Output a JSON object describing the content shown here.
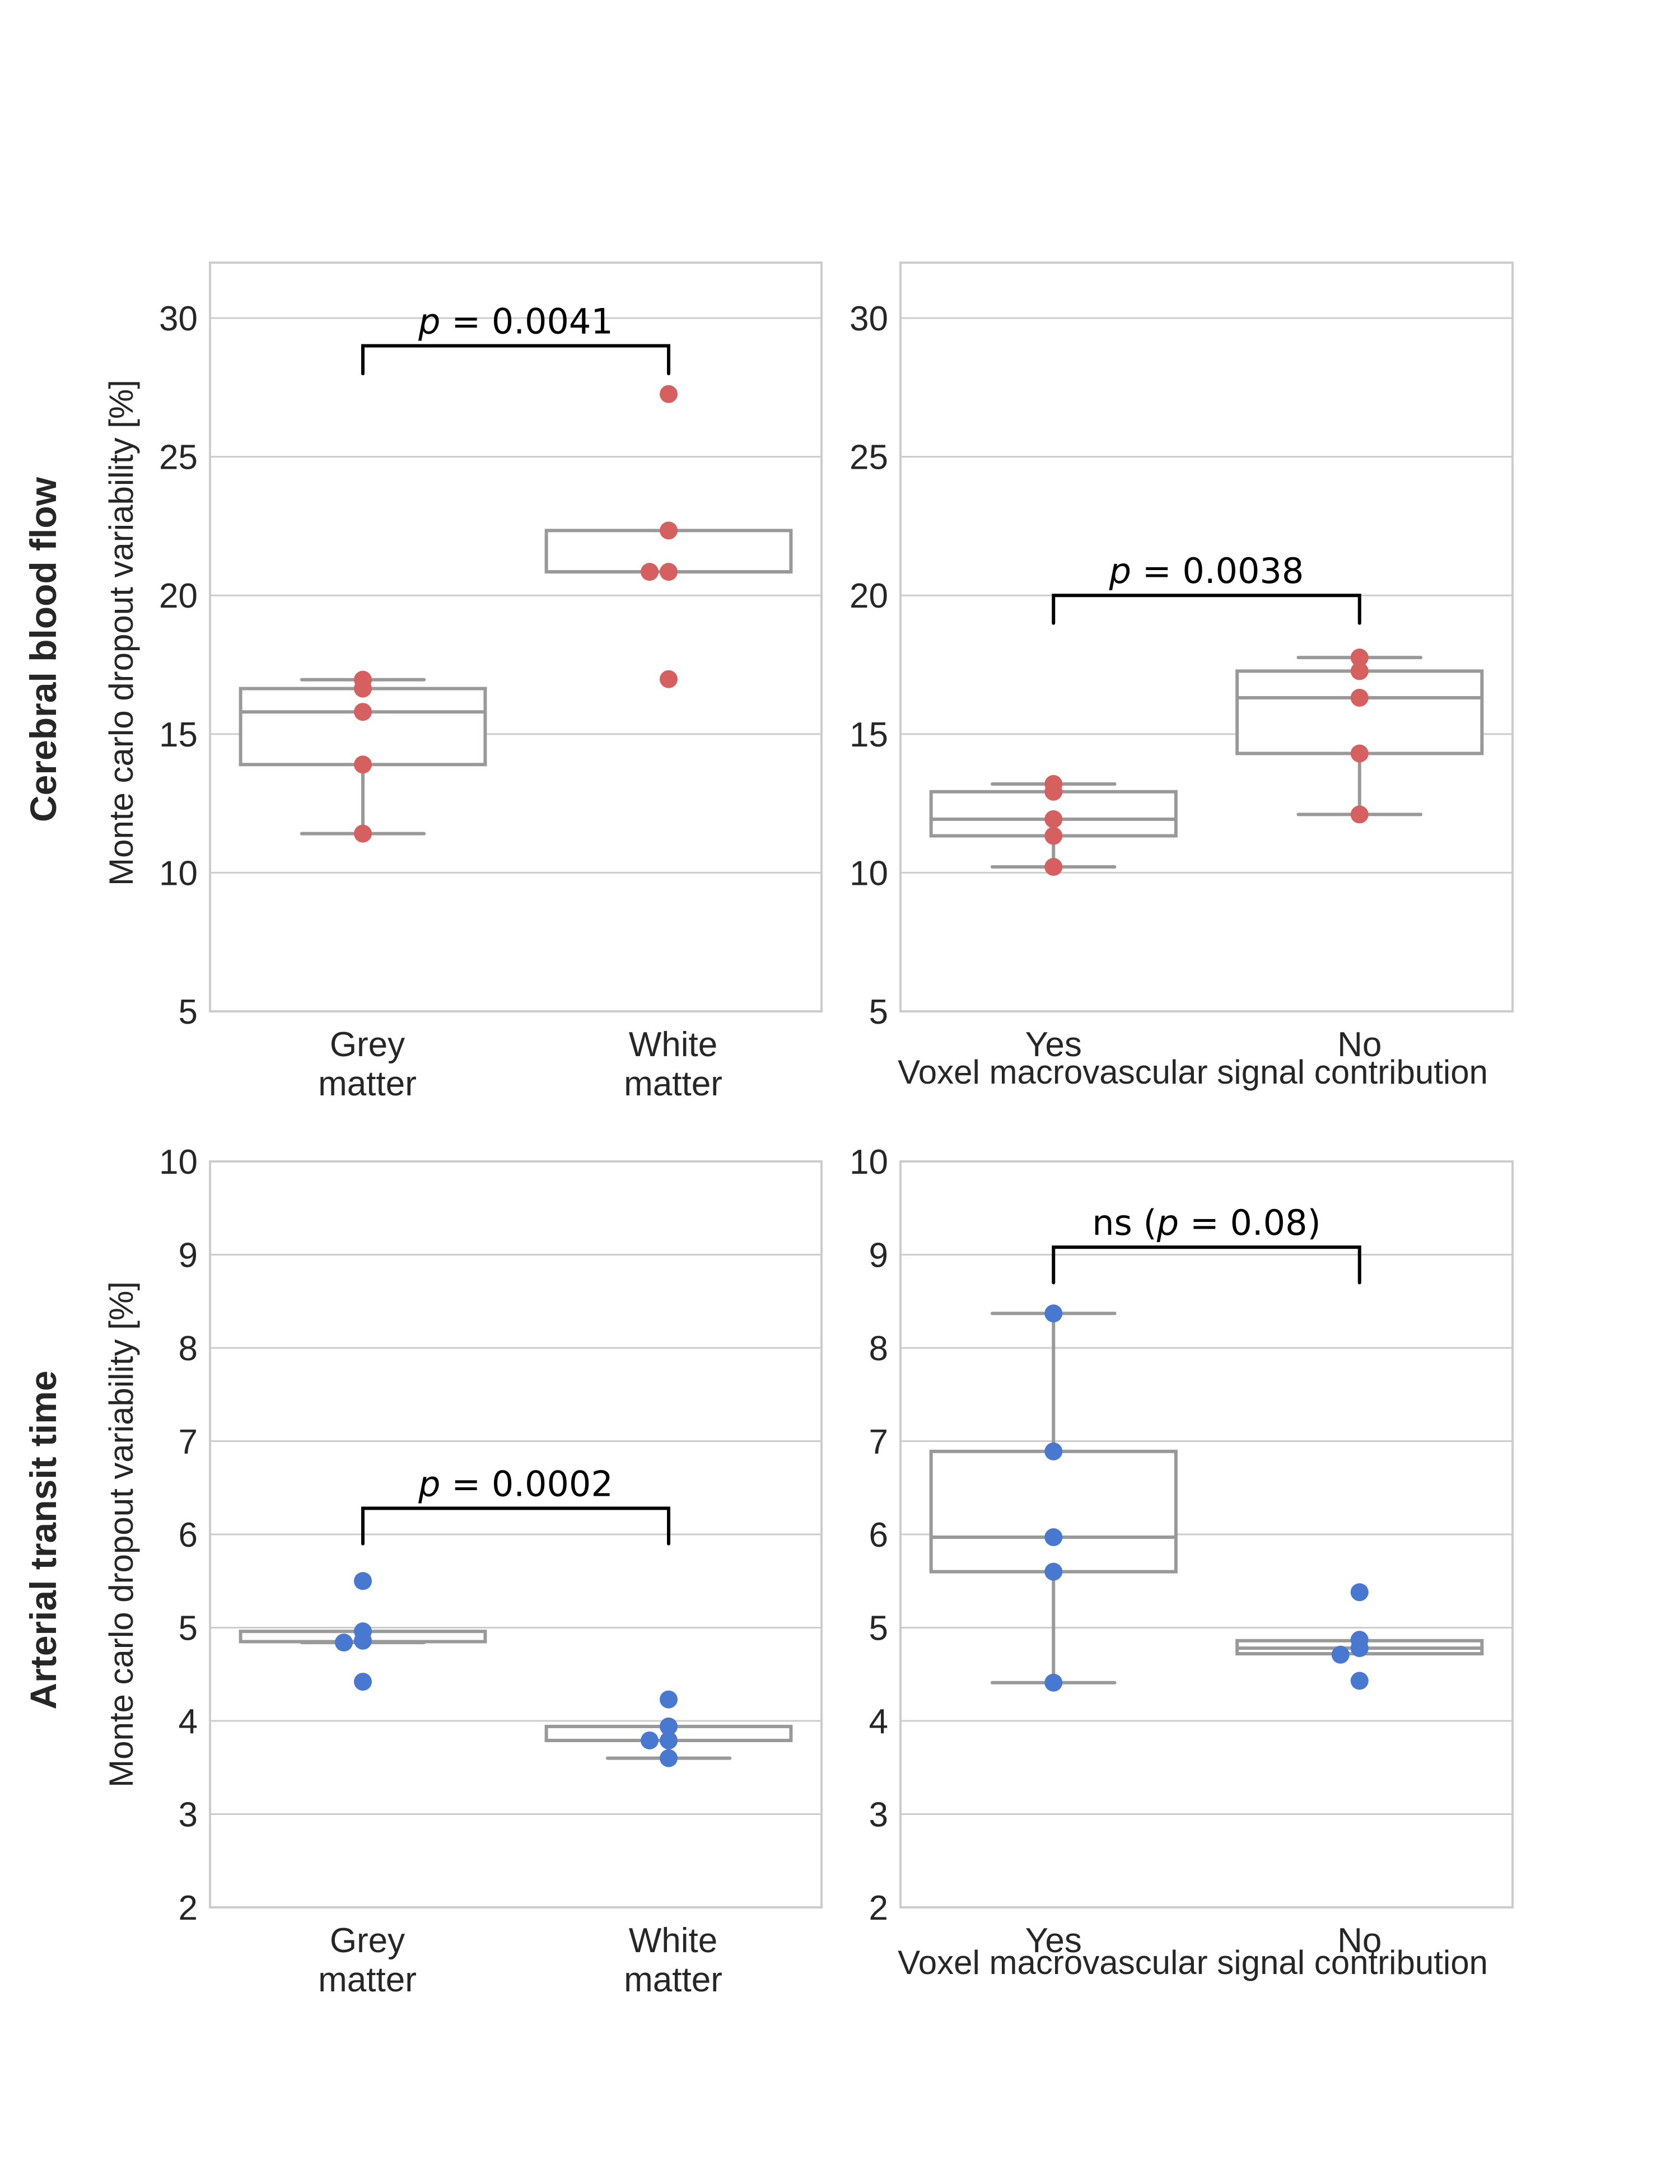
{
  "figure": {
    "row_labels": [
      "Cerebral blood flow",
      "Arterial transit time"
    ],
    "ylabel": "Monte carlo dropout variability [%]",
    "colors": {
      "cbf_points": "#d65f5f",
      "att_points": "#4878d0",
      "box_line": "#999999",
      "grid": "#cccccc",
      "spine": "#cccccc",
      "annotation": "#000000",
      "text": "#262626"
    }
  },
  "chart_data": [
    {
      "id": "cbf-tissue",
      "type": "box",
      "row": "Cerebral blood flow",
      "categories": [
        "Grey\nmatter",
        "White\nmatter"
      ],
      "xlabel": "",
      "ylabel": "Monte carlo dropout variability [%]",
      "ylim": [
        5,
        32
      ],
      "yticks": [
        5,
        10,
        15,
        20,
        25,
        30
      ],
      "grid": true,
      "series": [
        {
          "category": "Grey\nmatter",
          "points": [
            16.96,
            16.64,
            15.8,
            13.9,
            11.41
          ],
          "box": {
            "q1": 13.9,
            "median": 15.8,
            "q3": 16.64,
            "whisker_low": 11.41,
            "whisker_high": 16.96
          }
        },
        {
          "category": "White\nmatter",
          "points": [
            27.26,
            22.34,
            20.85,
            20.85,
            16.98
          ],
          "box": {
            "q1": 20.85,
            "median": 20.85,
            "q3": 22.34,
            "whisker_low": 20.85,
            "whisker_high": 22.34
          }
        }
      ],
      "annotation": {
        "prefix": "",
        "p_symbol": "p",
        "text": " = 0.0041",
        "suffix": "",
        "bracket_low": 28,
        "bracket_high": 29
      }
    },
    {
      "id": "cbf-macrovascular",
      "type": "box",
      "row": "Cerebral blood flow",
      "categories": [
        "Yes",
        "No"
      ],
      "xlabel": "Voxel macrovascular signal contribution",
      "ylabel": "",
      "ylim": [
        5,
        32
      ],
      "yticks": [
        5,
        10,
        15,
        20,
        25,
        30
      ],
      "grid": true,
      "series": [
        {
          "category": "Yes",
          "points": [
            13.2,
            12.92,
            11.93,
            11.33,
            10.21
          ],
          "box": {
            "q1": 11.33,
            "median": 11.93,
            "q3": 12.92,
            "whisker_low": 10.21,
            "whisker_high": 13.2
          }
        },
        {
          "category": "No",
          "points": [
            17.76,
            17.27,
            16.31,
            14.3,
            12.1
          ],
          "box": {
            "q1": 14.3,
            "median": 16.31,
            "q3": 17.27,
            "whisker_low": 12.1,
            "whisker_high": 17.76
          }
        }
      ],
      "annotation": {
        "prefix": "",
        "p_symbol": "p",
        "text": " = 0.0038",
        "suffix": "",
        "bracket_low": 19,
        "bracket_high": 20
      }
    },
    {
      "id": "att-tissue",
      "type": "box",
      "row": "Arterial transit time",
      "categories": [
        "Grey\nmatter",
        "White\nmatter"
      ],
      "xlabel": "",
      "ylabel": "Monte carlo dropout variability [%]",
      "ylim": [
        2,
        10
      ],
      "yticks": [
        2,
        3,
        4,
        5,
        6,
        7,
        8,
        9,
        10
      ],
      "grid": true,
      "series": [
        {
          "category": "Grey\nmatter",
          "points": [
            5.5,
            4.96,
            4.86,
            4.84,
            4.42
          ],
          "box": {
            "q1": 4.85,
            "median": 4.85,
            "q3": 4.96,
            "whisker_low": 4.84,
            "whisker_high": 4.96
          }
        },
        {
          "category": "White\nmatter",
          "points": [
            4.23,
            3.94,
            3.79,
            3.79,
            3.6
          ],
          "box": {
            "q1": 3.79,
            "median": 3.79,
            "q3": 3.94,
            "whisker_low": 3.6,
            "whisker_high": 3.94
          }
        }
      ],
      "annotation": {
        "prefix": "",
        "p_symbol": "p",
        "text": " = 0.0002",
        "suffix": "",
        "bracket_low": 5.9,
        "bracket_high": 6.28
      }
    },
    {
      "id": "att-macrovascular",
      "type": "box",
      "row": "Arterial transit time",
      "categories": [
        "Yes",
        "No"
      ],
      "xlabel": "Voxel macrovascular signal contribution",
      "ylabel": "",
      "ylim": [
        2,
        10
      ],
      "yticks": [
        2,
        3,
        4,
        5,
        6,
        7,
        8,
        9,
        10
      ],
      "grid": true,
      "series": [
        {
          "category": "Yes",
          "points": [
            8.37,
            6.89,
            5.97,
            5.6,
            4.41
          ],
          "box": {
            "q1": 5.6,
            "median": 5.97,
            "q3": 6.89,
            "whisker_low": 4.41,
            "whisker_high": 8.37
          }
        },
        {
          "category": "No",
          "points": [
            5.38,
            4.87,
            4.78,
            4.71,
            4.43
          ],
          "box": {
            "q1": 4.72,
            "median": 4.78,
            "q3": 4.86,
            "whisker_low": 4.72,
            "whisker_high": 4.86
          }
        }
      ],
      "annotation": {
        "prefix": "ns (",
        "p_symbol": "p",
        "text": " = 0.08",
        "suffix": ")",
        "bracket_low": 8.7,
        "bracket_high": 9.08
      }
    }
  ]
}
